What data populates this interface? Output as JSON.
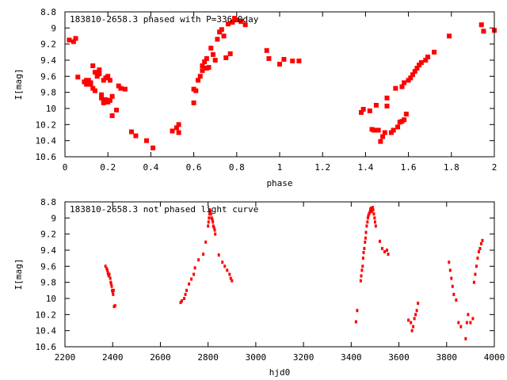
{
  "chart_data": [
    {
      "type": "scatter",
      "title": "183810-2658.3 phased with P=336.0day",
      "xlabel": "phase",
      "ylabel": "I[mag]",
      "xlim": [
        0,
        2
      ],
      "ylim": [
        10.6,
        8.8
      ],
      "y_inverted": true,
      "xticks": [
        "0",
        "0.2",
        "0.4",
        "0.6",
        "0.8",
        "1",
        "1.2",
        "1.4",
        "1.6",
        "1.8",
        "2"
      ],
      "yticks": [
        "8.8",
        "9",
        "9.2",
        "9.4",
        "9.6",
        "9.8",
        "10",
        "10.2",
        "10.4",
        "10.6"
      ],
      "marker_color": "#ff0000",
      "marker": "filled-square",
      "grid": false,
      "series": [
        {
          "x": [
            0.02,
            0.04,
            0.05,
            0.06,
            0.09,
            0.1,
            0.1,
            0.11,
            0.11,
            0.12,
            0.12,
            0.13,
            0.13,
            0.14,
            0.14,
            0.15,
            0.16,
            0.16,
            0.17,
            0.17,
            0.18,
            0.18,
            0.18,
            0.19,
            0.19,
            0.2,
            0.2,
            0.21,
            0.21,
            0.22,
            0.22,
            0.24,
            0.25,
            0.26,
            0.28,
            0.31,
            0.33,
            0.38,
            0.41,
            0.5,
            0.52,
            0.53,
            0.53,
            0.6,
            0.6,
            0.61,
            0.62,
            0.63,
            0.64,
            0.64,
            0.65,
            0.66,
            0.66,
            0.67,
            0.68,
            0.69,
            0.7,
            0.71,
            0.72,
            0.73,
            0.74,
            0.75,
            0.76,
            0.77,
            0.78,
            0.79,
            0.8,
            0.82,
            0.84,
            0.94,
            0.95,
            1.0,
            1.02,
            1.06,
            1.09,
            1.38,
            1.39,
            1.42,
            1.43,
            1.44,
            1.45,
            1.46,
            1.47,
            1.48,
            1.49,
            1.5,
            1.5,
            1.52,
            1.53,
            1.54,
            1.55,
            1.56,
            1.57,
            1.57,
            1.58,
            1.58,
            1.59,
            1.6,
            1.61,
            1.62,
            1.63,
            1.64,
            1.65,
            1.66,
            1.68,
            1.69,
            1.72,
            1.79,
            1.94,
            1.95,
            2.0
          ],
          "y": [
            9.15,
            9.17,
            9.13,
            9.61,
            9.67,
            9.65,
            9.7,
            9.65,
            9.7,
            9.68,
            9.7,
            9.47,
            9.75,
            9.55,
            9.78,
            9.6,
            9.52,
            9.57,
            9.83,
            9.87,
            9.65,
            9.9,
            9.93,
            9.89,
            9.62,
            9.6,
            9.92,
            9.65,
            9.9,
            10.09,
            9.85,
            10.02,
            9.72,
            9.75,
            9.76,
            10.29,
            10.34,
            10.4,
            10.49,
            10.28,
            10.24,
            10.3,
            10.2,
            9.76,
            9.93,
            9.78,
            9.65,
            9.6,
            9.47,
            9.53,
            9.42,
            9.5,
            9.38,
            9.49,
            9.25,
            9.33,
            9.4,
            9.14,
            9.05,
            9.02,
            9.1,
            9.37,
            8.95,
            9.32,
            8.93,
            8.88,
            8.9,
            8.92,
            8.96,
            9.28,
            9.38,
            9.45,
            9.39,
            9.41,
            9.41,
            10.05,
            10.01,
            10.03,
            10.26,
            10.27,
            9.96,
            10.27,
            10.41,
            10.35,
            10.3,
            9.97,
            9.87,
            10.3,
            10.27,
            9.75,
            10.23,
            10.17,
            10.16,
            9.73,
            10.14,
            9.68,
            10.07,
            9.65,
            9.62,
            9.58,
            9.54,
            9.5,
            9.46,
            9.43,
            9.4,
            9.36,
            9.3,
            9.1,
            8.96,
            9.04,
            9.03
          ]
        }
      ]
    },
    {
      "type": "scatter",
      "title": "183810-2658.3 not phased light curve",
      "xlabel": "hjd0",
      "ylabel": "I[mag]",
      "xlim": [
        2200,
        4000
      ],
      "ylim": [
        10.6,
        8.8
      ],
      "y_inverted": true,
      "xticks": [
        "2200",
        "2400",
        "2600",
        "2800",
        "3000",
        "3200",
        "3400",
        "3600",
        "3800",
        "4000"
      ],
      "yticks": [
        "8.8",
        "9",
        "9.2",
        "9.4",
        "9.6",
        "9.8",
        "10",
        "10.2",
        "10.4",
        "10.6"
      ],
      "marker_color": "#ff0000",
      "marker": "small-dot",
      "grid": false,
      "series": [
        {
          "x": [
            2370,
            2375,
            2378,
            2380,
            2382,
            2384,
            2386,
            2390,
            2392,
            2394,
            2396,
            2398,
            2400,
            2402,
            2404,
            2406,
            2410,
            2685,
            2690,
            2700,
            2705,
            2710,
            2720,
            2730,
            2740,
            2745,
            2760,
            2780,
            2790,
            2800,
            2802,
            2804,
            2806,
            2808,
            2810,
            2812,
            2815,
            2818,
            2820,
            2822,
            2825,
            2828,
            2830,
            2845,
            2860,
            2870,
            2880,
            2890,
            2895,
            2900,
            3420,
            3425,
            3440,
            3442,
            3445,
            3448,
            3450,
            3452,
            3455,
            3458,
            3460,
            3462,
            3465,
            3468,
            3470,
            3472,
            3475,
            3478,
            3480,
            3482,
            3484,
            3486,
            3488,
            3490,
            3492,
            3495,
            3498,
            3500,
            3503,
            3520,
            3530,
            3540,
            3550,
            3555,
            3640,
            3650,
            3655,
            3660,
            3665,
            3670,
            3675,
            3680,
            3810,
            3815,
            3820,
            3825,
            3830,
            3840,
            3850,
            3860,
            3880,
            3885,
            3890,
            3900,
            3910,
            3915,
            3920,
            3925,
            3930,
            3935,
            3940,
            3945,
            3950
          ],
          "y": [
            9.6,
            9.63,
            9.65,
            9.68,
            9.7,
            9.72,
            9.7,
            9.75,
            9.8,
            9.82,
            9.85,
            9.9,
            9.92,
            9.95,
            9.9,
            10.1,
            10.09,
            10.05,
            10.03,
            10.0,
            9.95,
            9.9,
            9.82,
            9.76,
            9.7,
            9.62,
            9.52,
            9.45,
            9.3,
            9.1,
            9.05,
            9.0,
            8.95,
            8.9,
            8.92,
            8.95,
            9.0,
            9.02,
            9.05,
            9.1,
            9.12,
            9.15,
            9.2,
            9.46,
            9.55,
            9.6,
            9.65,
            9.7,
            9.75,
            9.78,
            10.29,
            10.15,
            9.78,
            9.72,
            9.65,
            9.6,
            9.5,
            9.43,
            9.38,
            9.3,
            9.25,
            9.18,
            9.1,
            9.05,
            9.0,
            8.97,
            8.95,
            8.93,
            8.9,
            8.88,
            8.9,
            8.92,
            8.89,
            8.87,
            8.9,
            8.95,
            9.0,
            9.05,
            9.1,
            9.29,
            9.38,
            9.42,
            9.4,
            9.45,
            10.27,
            10.3,
            10.4,
            10.35,
            10.25,
            10.2,
            10.15,
            10.06,
            9.55,
            9.65,
            9.75,
            9.85,
            9.95,
            10.02,
            10.3,
            10.35,
            10.5,
            10.3,
            10.2,
            10.3,
            10.25,
            9.8,
            9.7,
            9.6,
            9.5,
            9.42,
            9.38,
            9.32,
            9.28
          ]
        }
      ]
    }
  ]
}
